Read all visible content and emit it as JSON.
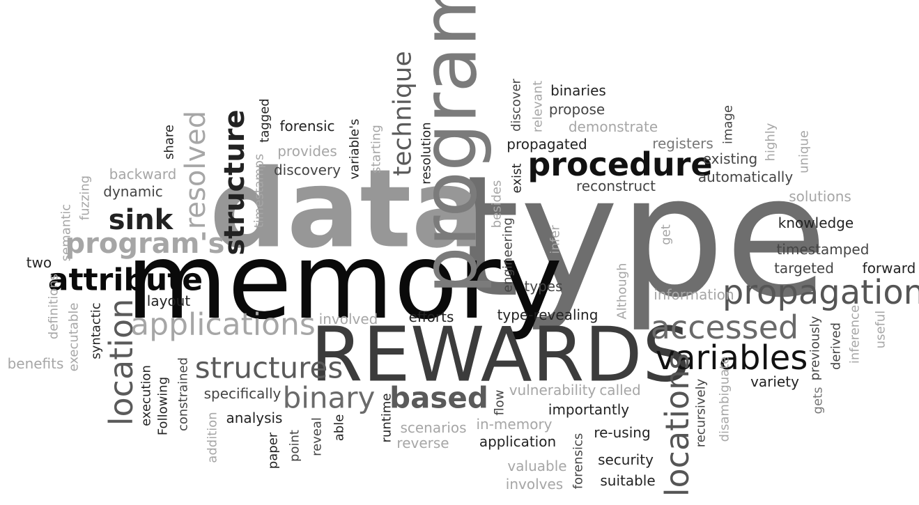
{
  "words": [
    {
      "text": "type",
      "color": "#6e6e6e"
    },
    {
      "text": "memory",
      "color": "#0a0a0a"
    },
    {
      "text": "data",
      "color": "#979797"
    },
    {
      "text": "REWARDS",
      "color": "#3c3c3c"
    },
    {
      "text": "program",
      "color": "#7b7b7b"
    },
    {
      "text": "procedure",
      "color": "#111111"
    },
    {
      "text": "propagation",
      "color": "#555555"
    },
    {
      "text": "variables",
      "color": "#111111"
    },
    {
      "text": "accessed",
      "color": "#6a6a6a"
    },
    {
      "text": "locations",
      "color": "#555555"
    },
    {
      "text": "location",
      "color": "#5a5a5a"
    },
    {
      "text": "applications",
      "color": "#a6a6a6"
    },
    {
      "text": "structures",
      "color": "#5a5a5a"
    },
    {
      "text": "binary",
      "color": "#6a6a6a"
    },
    {
      "text": "based",
      "color": "#5a5a5a"
    },
    {
      "text": "attribute",
      "color": "#0a0a0a"
    },
    {
      "text": "program's",
      "color": "#a6a6a6"
    },
    {
      "text": "sink",
      "color": "#222222"
    },
    {
      "text": "resolved",
      "color": "#a6a6a6"
    },
    {
      "text": "structure",
      "color": "#222222"
    },
    {
      "text": "technique",
      "color": "#5a5a5a"
    },
    {
      "text": "binaries",
      "color": "#222222"
    },
    {
      "text": "propose",
      "color": "#444444"
    },
    {
      "text": "demonstrate",
      "color": "#a6a6a6"
    },
    {
      "text": "propagated",
      "color": "#222222"
    },
    {
      "text": "registers",
      "color": "#777777"
    },
    {
      "text": "existing",
      "color": "#444444"
    },
    {
      "text": "automatically",
      "color": "#444444"
    },
    {
      "text": "reconstruct",
      "color": "#444444"
    },
    {
      "text": "solutions",
      "color": "#a6a6a6"
    },
    {
      "text": "knowledge",
      "color": "#222222"
    },
    {
      "text": "timestamped",
      "color": "#444444"
    },
    {
      "text": "targeted",
      "color": "#444444"
    },
    {
      "text": "forward",
      "color": "#222222"
    },
    {
      "text": "information",
      "color": "#a6a6a6"
    },
    {
      "text": "variety",
      "color": "#222222"
    },
    {
      "text": "forensic",
      "color": "#222222"
    },
    {
      "text": "provides",
      "color": "#a6a6a6"
    },
    {
      "text": "discovery",
      "color": "#444444"
    },
    {
      "text": "backward",
      "color": "#a6a6a6"
    },
    {
      "text": "dynamic",
      "color": "#444444"
    },
    {
      "text": "two",
      "color": "#222222"
    },
    {
      "text": "layout",
      "color": "#222222"
    },
    {
      "text": "involved",
      "color": "#a6a6a6"
    },
    {
      "text": "efforts",
      "color": "#222222"
    },
    {
      "text": "type-revealing",
      "color": "#222222"
    },
    {
      "text": "types",
      "color": "#444444"
    },
    {
      "text": "benefits",
      "color": "#a6a6a6"
    },
    {
      "text": "specifically",
      "color": "#444444"
    },
    {
      "text": "analysis",
      "color": "#222222"
    },
    {
      "text": "vulnerability",
      "color": "#a6a6a6"
    },
    {
      "text": "called",
      "color": "#a6a6a6"
    },
    {
      "text": "importantly",
      "color": "#222222"
    },
    {
      "text": "scenarios",
      "color": "#a6a6a6"
    },
    {
      "text": "reverse",
      "color": "#a6a6a6"
    },
    {
      "text": "in-memory",
      "color": "#a6a6a6"
    },
    {
      "text": "application",
      "color": "#222222"
    },
    {
      "text": "re-using",
      "color": "#222222"
    },
    {
      "text": "security",
      "color": "#222222"
    },
    {
      "text": "suitable",
      "color": "#222222"
    },
    {
      "text": "valuable",
      "color": "#a6a6a6"
    },
    {
      "text": "involves",
      "color": "#a6a6a6"
    },
    {
      "text": "share",
      "color": "#222222"
    },
    {
      "text": "fuzzing",
      "color": "#a6a6a6"
    },
    {
      "text": "semantic",
      "color": "#a6a6a6"
    },
    {
      "text": "definitions",
      "color": "#a6a6a6"
    },
    {
      "text": "executable",
      "color": "#a6a6a6"
    },
    {
      "text": "syntactic",
      "color": "#222222"
    },
    {
      "text": "execution",
      "color": "#222222"
    },
    {
      "text": "Following",
      "color": "#222222"
    },
    {
      "text": "constrained",
      "color": "#444444"
    },
    {
      "text": "addition",
      "color": "#a6a6a6"
    },
    {
      "text": "paper",
      "color": "#222222"
    },
    {
      "text": "point",
      "color": "#444444"
    },
    {
      "text": "reveal",
      "color": "#444444"
    },
    {
      "text": "able",
      "color": "#222222"
    },
    {
      "text": "runtime",
      "color": "#222222"
    },
    {
      "text": "flow",
      "color": "#444444"
    },
    {
      "text": "forensics",
      "color": "#444444"
    },
    {
      "text": "recursively",
      "color": "#444444"
    },
    {
      "text": "disambiguate",
      "color": "#a6a6a6"
    },
    {
      "text": "gets",
      "color": "#777777"
    },
    {
      "text": "previously",
      "color": "#444444"
    },
    {
      "text": "derived",
      "color": "#444444"
    },
    {
      "text": "inference",
      "color": "#a6a6a6"
    },
    {
      "text": "useful",
      "color": "#a6a6a6"
    },
    {
      "text": "timestamps",
      "color": "#a6a6a6"
    },
    {
      "text": "tagged",
      "color": "#222222"
    },
    {
      "text": "variable's",
      "color": "#222222"
    },
    {
      "text": "starting",
      "color": "#a6a6a6"
    },
    {
      "text": "resolution",
      "color": "#222222"
    },
    {
      "text": "besides",
      "color": "#a6a6a6"
    },
    {
      "text": "exist",
      "color": "#222222"
    },
    {
      "text": "engineering",
      "color": "#444444"
    },
    {
      "text": "infer",
      "color": "#a6a6a6"
    },
    {
      "text": "discover",
      "color": "#444444"
    },
    {
      "text": "relevant",
      "color": "#a6a6a6"
    },
    {
      "text": "Although",
      "color": "#a6a6a6"
    },
    {
      "text": "get",
      "color": "#a6a6a6"
    },
    {
      "text": "image",
      "color": "#444444"
    },
    {
      "text": "highly",
      "color": "#a6a6a6"
    },
    {
      "text": "unique",
      "color": "#a6a6a6"
    }
  ]
}
